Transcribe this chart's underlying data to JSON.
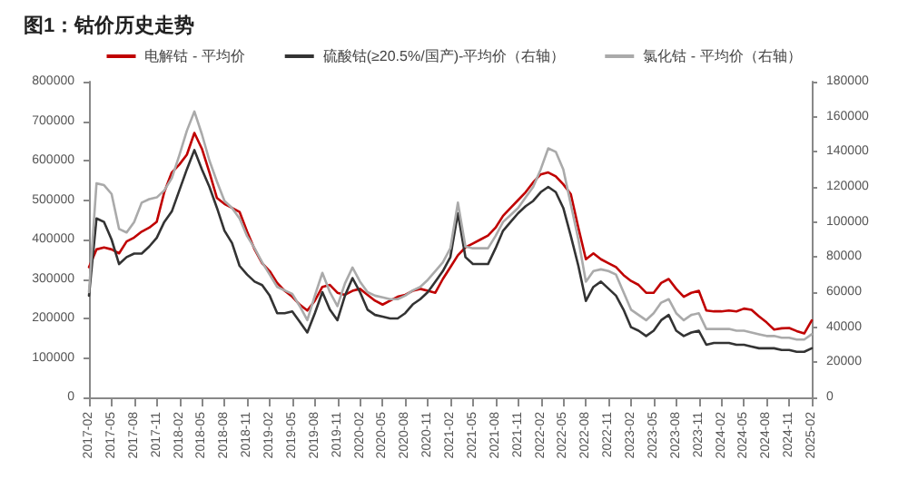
{
  "chart_data": {
    "type": "line",
    "title": "图1：钴价历史走势",
    "categories": [
      "2017-02",
      null,
      null,
      "2017-05",
      null,
      null,
      "2017-08",
      null,
      null,
      "2017-11",
      null,
      null,
      "2018-02",
      null,
      null,
      "2018-05",
      null,
      null,
      "2018-08",
      null,
      null,
      "2018-11",
      null,
      null,
      "2019-02",
      null,
      null,
      "2019-05",
      null,
      null,
      "2019-08",
      null,
      null,
      "2019-11",
      null,
      null,
      "2020-02",
      null,
      null,
      "2020-05",
      null,
      null,
      "2020-08",
      null,
      null,
      "2020-11",
      null,
      null,
      "2021-02",
      null,
      null,
      "2021-05",
      null,
      null,
      "2021-08",
      null,
      null,
      "2021-11",
      null,
      null,
      "2022-02",
      null,
      null,
      "2022-05",
      null,
      null,
      "2022-08",
      null,
      null,
      "2022-11",
      null,
      null,
      "2023-02",
      null,
      null,
      "2023-05",
      null,
      null,
      "2023-08",
      null,
      null,
      "2023-11",
      null,
      null,
      "2024-02",
      null,
      null,
      "2024-05",
      null,
      null,
      "2024-08",
      null,
      null,
      "2024-11",
      null,
      null,
      "2025-02"
    ],
    "series": [
      {
        "name": "电解钴 - 平均价",
        "color": "#c00000",
        "values": [
          330000,
          375000,
          380000,
          375000,
          365000,
          395000,
          405000,
          420000,
          430000,
          445000,
          520000,
          570000,
          590000,
          615000,
          670000,
          630000,
          570000,
          505000,
          490000,
          480000,
          470000,
          420000,
          375000,
          340000,
          320000,
          290000,
          270000,
          255000,
          235000,
          220000,
          245000,
          280000,
          285000,
          265000,
          260000,
          270000,
          275000,
          260000,
          245000,
          235000,
          245000,
          255000,
          260000,
          270000,
          275000,
          270000,
          265000,
          300000,
          330000,
          360000,
          380000,
          390000,
          400000,
          410000,
          430000,
          460000,
          480000,
          500000,
          520000,
          545000,
          565000,
          570000,
          560000,
          540000,
          515000,
          430000,
          350000,
          365000,
          350000,
          340000,
          330000,
          310000,
          295000,
          285000,
          265000,
          265000,
          290000,
          300000,
          275000,
          255000,
          265000,
          270000,
          220000,
          218000,
          218000,
          220000,
          218000,
          225000,
          222000,
          205000,
          190000,
          172000,
          175000,
          176000,
          168000,
          162000,
          195000
        ]
      },
      {
        "name": "硫酸钴(≥20.5%/国产)-平均价（右轴）",
        "color": "#333333",
        "axis": "y2",
        "values": [
          58000,
          102000,
          100000,
          90000,
          76000,
          80000,
          82000,
          82000,
          86000,
          91000,
          100000,
          106000,
          118000,
          130000,
          141000,
          130000,
          120000,
          108000,
          95000,
          88000,
          75000,
          70000,
          66000,
          64000,
          58000,
          48000,
          48000,
          49000,
          43000,
          37000,
          48000,
          60000,
          50000,
          44000,
          58000,
          68000,
          60000,
          50000,
          47000,
          46000,
          45000,
          45000,
          48000,
          53000,
          56000,
          60000,
          66000,
          72000,
          80000,
          105000,
          80000,
          76000,
          76000,
          76000,
          85000,
          95000,
          100000,
          105000,
          109000,
          112000,
          117000,
          120000,
          117000,
          108000,
          92000,
          75000,
          55000,
          63000,
          66000,
          62000,
          58000,
          50000,
          40000,
          38000,
          35000,
          38000,
          44000,
          47000,
          38000,
          35000,
          37000,
          38000,
          30000,
          31000,
          31000,
          31000,
          30000,
          30000,
          29000,
          28000,
          28000,
          28000,
          27000,
          27000,
          26000,
          26000,
          28000
        ]
      },
      {
        "name": "氯化钴 - 平均价（右轴）",
        "color": "#aaaaaa",
        "axis": "y2",
        "values": [
          60000,
          122000,
          121000,
          116000,
          96000,
          94000,
          100000,
          111000,
          113000,
          114000,
          118000,
          125000,
          138000,
          152000,
          163000,
          150000,
          135000,
          123000,
          112000,
          108000,
          102000,
          92000,
          85000,
          77000,
          70000,
          63000,
          61000,
          59000,
          52000,
          44000,
          58000,
          71000,
          60000,
          52000,
          65000,
          74000,
          66000,
          60000,
          58000,
          57000,
          56000,
          56000,
          58000,
          61000,
          63000,
          67000,
          72000,
          77000,
          85000,
          111000,
          86000,
          85000,
          85000,
          85000,
          92000,
          100000,
          104000,
          108000,
          114000,
          120000,
          130000,
          142000,
          140000,
          130000,
          110000,
          90000,
          66000,
          72000,
          73000,
          72000,
          70000,
          60000,
          50000,
          47000,
          44000,
          48000,
          54000,
          56000,
          48000,
          44000,
          47000,
          48000,
          39000,
          39000,
          39000,
          39000,
          38000,
          38000,
          37000,
          36000,
          35000,
          35000,
          34000,
          34000,
          33000,
          33000,
          36000
        ]
      }
    ],
    "ylim": [
      0,
      800000
    ],
    "yticks": [
      0,
      100000,
      200000,
      300000,
      400000,
      500000,
      600000,
      700000,
      800000
    ],
    "y2lim": [
      0,
      180000
    ],
    "y2ticks": [
      0,
      20000,
      40000,
      60000,
      80000,
      100000,
      120000,
      140000,
      160000,
      180000
    ],
    "grid": false,
    "legend": "top",
    "marker": "none",
    "line_style": "solid"
  }
}
